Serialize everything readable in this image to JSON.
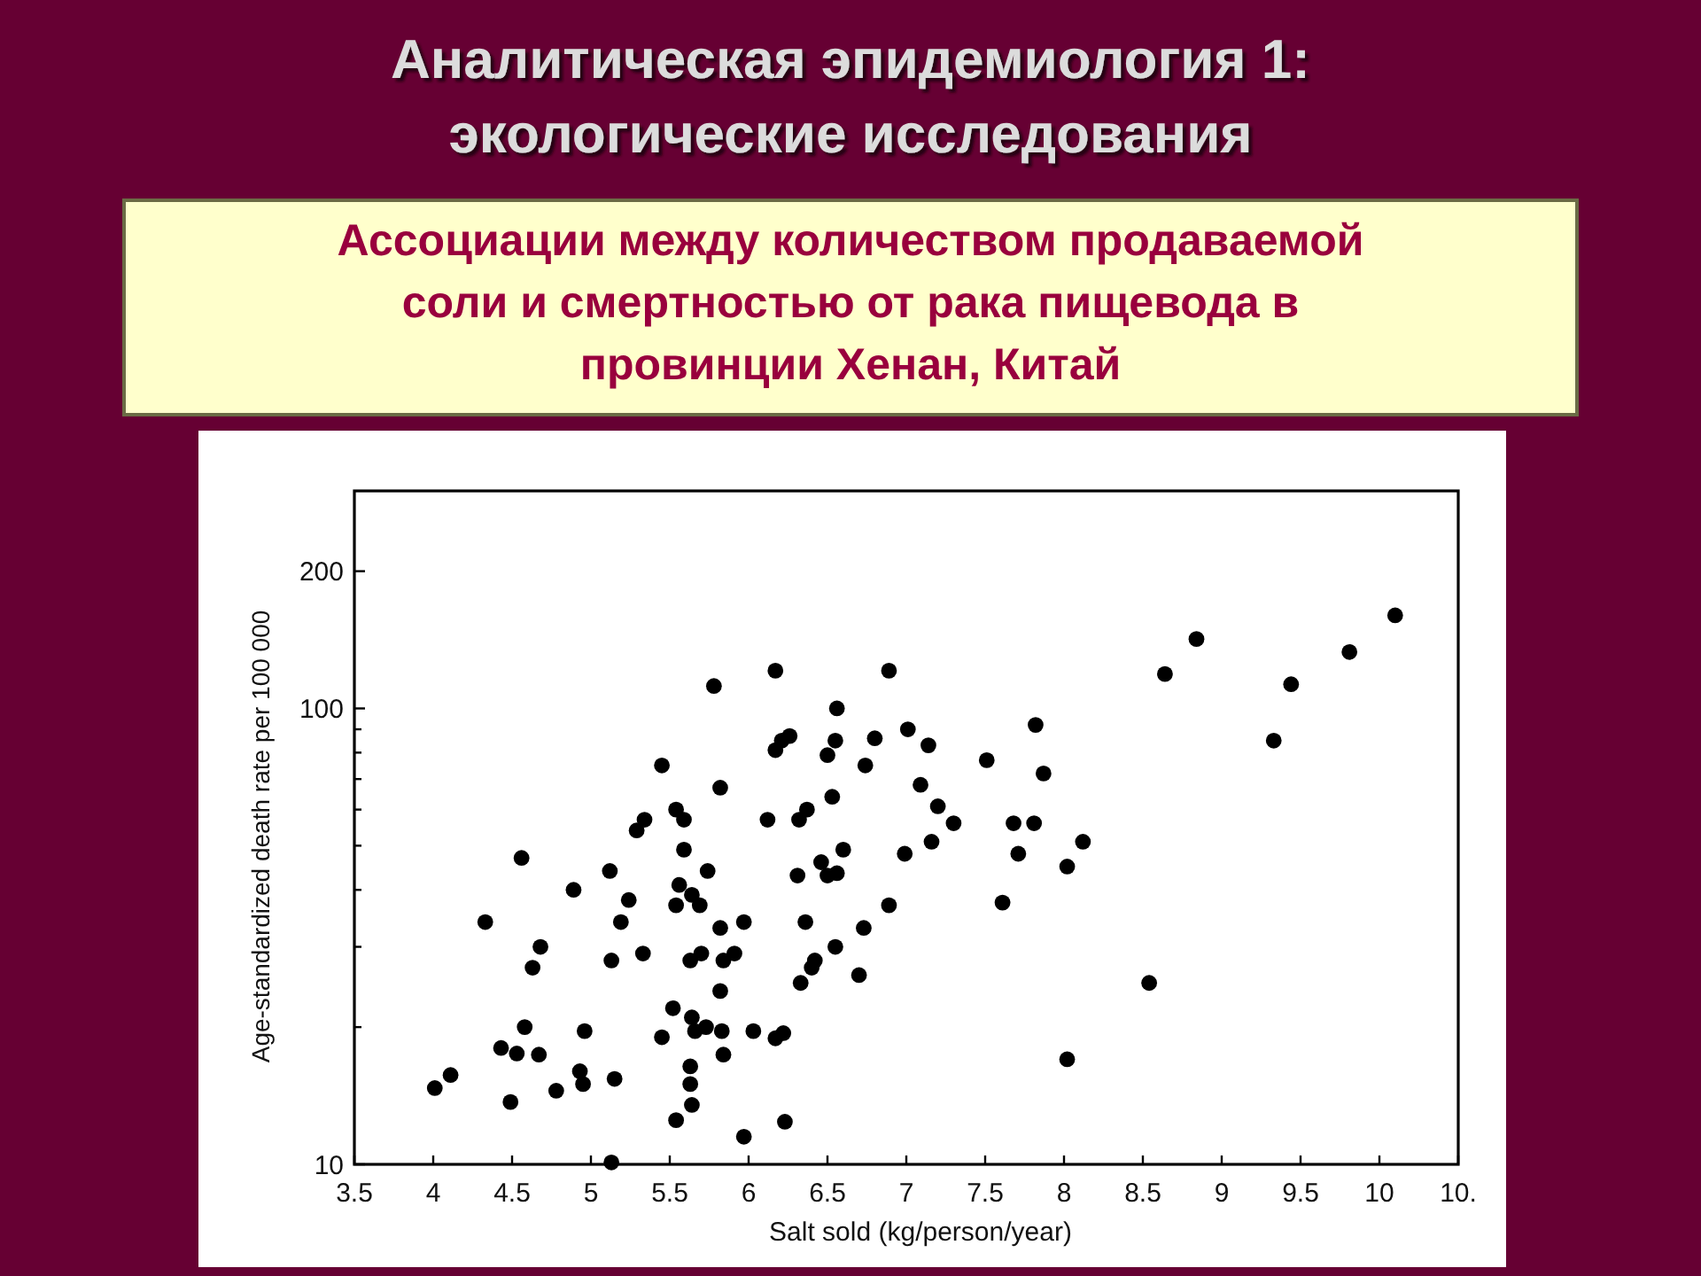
{
  "chart_data": {
    "type": "scatter",
    "title": "Аналитическая эпидемиология 1:\nэкологические исследования",
    "subtitle": "Ассоциации между количеством продаваемой\nсоли и смертностью от рака пищевода в\nпровинции Хенан, Китай",
    "xlabel": "Salt sold (kg/person/year)",
    "ylabel": "Age-standardized death rate per 100 000",
    "x": [
      5.78,
      5.45,
      5.82,
      5.54,
      5.59,
      5.34,
      5.29,
      5.59,
      4.56,
      5.12,
      5.74,
      5.56,
      4.89,
      5.64,
      5.24,
      5.54,
      5.69,
      5.19,
      4.33,
      5.82,
      4.68,
      5.33,
      5.7,
      5.63,
      5.84,
      5.91,
      4.63,
      5.13,
      5.82,
      5.52,
      5.64,
      5.73,
      5.66,
      4.58,
      4.96,
      5.83,
      5.45,
      4.43,
      4.53,
      4.67,
      5.84,
      5.63,
      4.93,
      4.11,
      4.01,
      4.78,
      4.95,
      5.15,
      5.63,
      4.49,
      5.64,
      5.54,
      5.13,
      6.17,
      6.89,
      6.56,
      7.82,
      7.01,
      6.26,
      6.21,
      6.55,
      6.8,
      6.17,
      7.14,
      6.5,
      6.74,
      7.51,
      7.87,
      7.09,
      6.53,
      6.37,
      7.2,
      6.32,
      6.12,
      7.3,
      7.68,
      7.81,
      8.12,
      7.16,
      6.6,
      6.99,
      7.71,
      6.46,
      8.02,
      6.31,
      6.5,
      6.56,
      6.89,
      7.61,
      5.97,
      6.36,
      6.73,
      6.55,
      6.42,
      6.4,
      6.33,
      6.7,
      6.03,
      6.17,
      6.22,
      8.02,
      6.23,
      5.97,
      10.1,
      8.84,
      9.81,
      8.64,
      9.44,
      9.33,
      8.54
    ],
    "values": [
      112,
      75,
      67,
      60,
      57,
      57,
      54,
      49,
      47,
      44,
      44,
      41,
      40,
      39,
      38,
      37,
      37,
      34,
      34,
      33,
      30,
      29,
      29,
      28,
      28,
      29,
      27,
      28,
      24,
      22,
      21,
      20,
      19.6,
      20,
      19.6,
      19.6,
      19,
      18,
      17.5,
      17.4,
      17.4,
      16.4,
      16,
      15.7,
      14.7,
      14.5,
      15,
      15.4,
      15,
      13.7,
      13.5,
      12.5,
      10.1,
      121,
      121,
      100,
      92,
      90,
      87,
      85,
      85,
      86,
      81,
      83,
      79,
      75,
      77,
      72,
      68,
      64,
      60,
      61,
      57,
      57,
      56,
      56,
      56,
      51,
      51,
      49,
      48,
      48,
      46,
      45,
      43,
      43,
      43.5,
      37,
      37.5,
      34,
      34,
      33,
      30,
      28,
      27,
      25,
      26,
      19.6,
      18.9,
      19.4,
      17,
      12.4,
      11.5,
      160,
      142,
      133,
      119,
      113,
      85,
      25
    ],
    "color": "#000000",
    "marker": "circle",
    "log": "y",
    "xlim": [
      3.5,
      10.5
    ],
    "xticks": [
      3.5,
      4,
      4.5,
      5,
      5.5,
      6,
      6.5,
      7,
      7.5,
      8,
      8.5,
      9,
      9.5,
      10,
      {
        "value": 10.5,
        "label": "10."
      }
    ],
    "ylim": [
      10,
      300
    ],
    "yticks": [
      10,
      {
        "value": 20,
        "label": null
      },
      {
        "value": 30,
        "label": null
      },
      {
        "value": 40,
        "label": null
      },
      {
        "value": 50,
        "label": null
      },
      {
        "value": 60,
        "label": null
      },
      {
        "value": 70,
        "label": null
      },
      {
        "value": 80,
        "label": null
      },
      {
        "value": 90,
        "label": null
      },
      100,
      200
    ]
  }
}
